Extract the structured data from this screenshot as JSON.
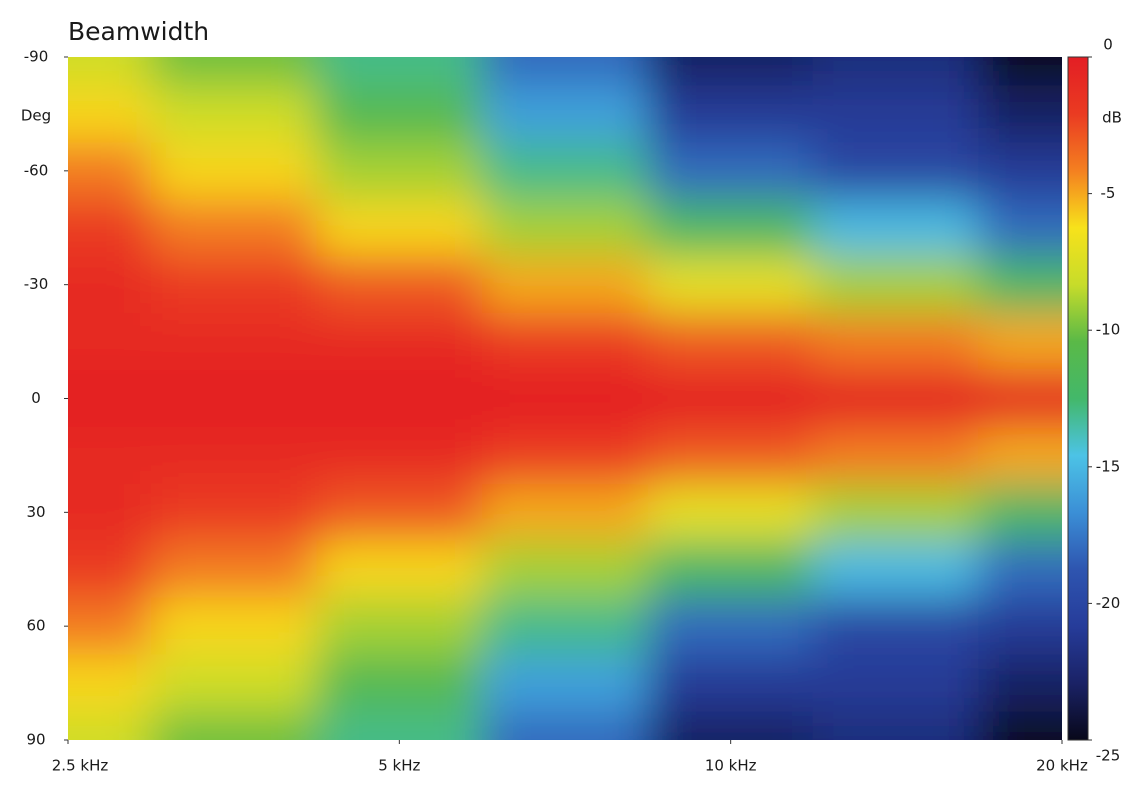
{
  "chart_data": {
    "type": "heatmap",
    "title": "Beamwidth",
    "y_label": "Deg",
    "colorbar_label": "dB",
    "x": [
      2500,
      3540,
      5000,
      7070,
      10000,
      14100,
      20000
    ],
    "y": [
      -90,
      -75,
      -60,
      -45,
      -30,
      -15,
      0,
      15,
      30,
      45,
      60,
      75,
      90
    ],
    "z": [
      [
        -8,
        -10,
        -13,
        -18,
        -23,
        -22,
        -25
      ],
      [
        -6,
        -8,
        -11,
        -16,
        -21,
        -21,
        -23
      ],
      [
        -4,
        -6,
        -9,
        -13,
        -18,
        -20,
        -21
      ],
      [
        -2,
        -4,
        -6,
        -9,
        -12,
        -15,
        -18
      ],
      [
        -1,
        -2,
        -3,
        -5,
        -7,
        -9,
        -12
      ],
      [
        -1,
        -1,
        -1,
        -2,
        -3,
        -4,
        -5
      ],
      [
        0,
        0,
        0,
        0,
        0,
        0,
        0
      ],
      [
        -1,
        -1,
        -1,
        -2,
        -3,
        -4,
        -5
      ],
      [
        -1,
        -2,
        -3,
        -5,
        -7,
        -9,
        -12
      ],
      [
        -2,
        -4,
        -6,
        -9,
        -12,
        -15,
        -18
      ],
      [
        -4,
        -6,
        -9,
        -13,
        -18,
        -20,
        -21
      ],
      [
        -6,
        -8,
        -11,
        -16,
        -21,
        -21,
        -23
      ],
      [
        -8,
        -10,
        -13,
        -18,
        -23,
        -22,
        -25
      ]
    ],
    "xscale": "log",
    "xlim": [
      2500,
      20000
    ],
    "xticks": [
      {
        "value": 2500,
        "label": "2.5 kHz"
      },
      {
        "value": 5000,
        "label": "5 kHz"
      },
      {
        "value": 10000,
        "label": "10 kHz"
      },
      {
        "value": 20000,
        "label": "20 kHz"
      }
    ],
    "ylim": [
      -90,
      90
    ],
    "yticks": [
      -90,
      -60,
      -30,
      0,
      30,
      60,
      90
    ],
    "zlim": [
      0,
      -25
    ],
    "zticks": [
      0,
      -5,
      -10,
      -15,
      -20,
      -25
    ],
    "colors": [
      "#e31e24",
      "#ea3b22",
      "#f48020",
      "#f7e21b",
      "#c7dc2a",
      "#5ab947",
      "#43b86a",
      "#4cc3e6",
      "#3b8fd6",
      "#2e55b0",
      "#263c9a",
      "#1a2266",
      "#08081a"
    ]
  }
}
